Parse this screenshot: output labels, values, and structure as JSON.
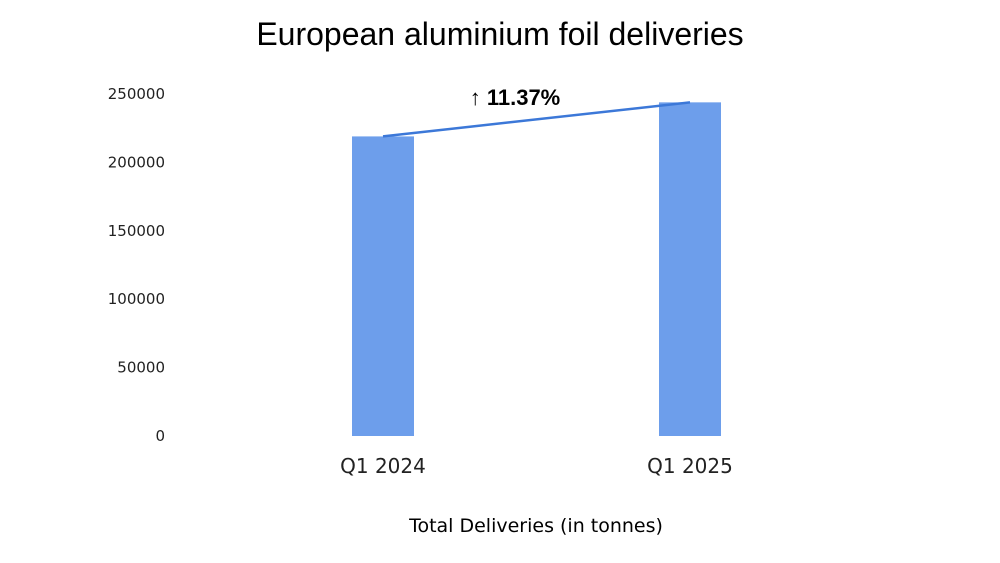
{
  "chart_data": {
    "type": "bar",
    "title": "European aluminium foil deliveries",
    "xlabel": "Total Deliveries (in tonnes)",
    "ylabel": "",
    "categories": [
      "Q1 2024",
      "Q1 2025"
    ],
    "values": [
      219000,
      243900
    ],
    "ylim": [
      0,
      250000
    ],
    "yticks": [
      0,
      50000,
      100000,
      150000,
      200000,
      250000
    ],
    "ytick_labels": [
      "0",
      "50000",
      "100000",
      "150000",
      "200000",
      "250000"
    ],
    "grid": false,
    "legend": "none",
    "bar_color": "#6d9eeb",
    "trend_line": {
      "from_category": "Q1 2024",
      "to_category": "Q1 2025",
      "color": "#3c78d8",
      "label": "↑ 11.37%"
    }
  }
}
